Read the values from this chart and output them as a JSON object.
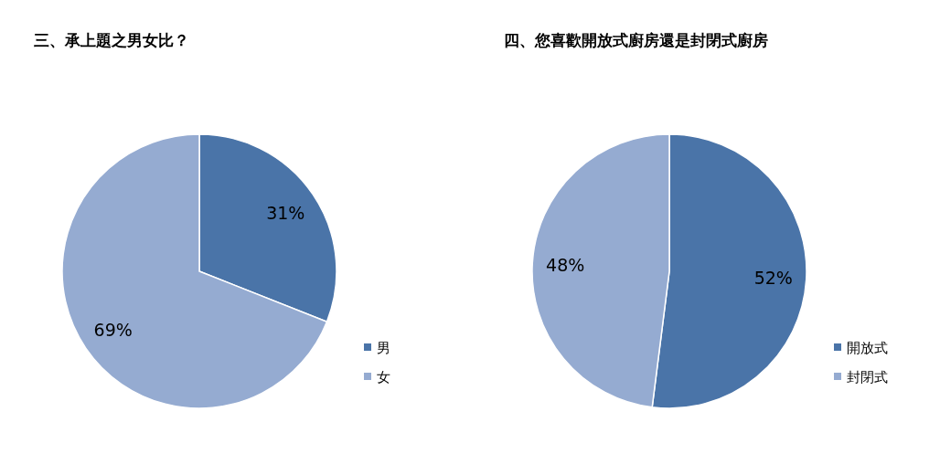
{
  "chart_data": [
    {
      "type": "pie",
      "title": "三、承上題之男女比？",
      "categories": [
        "男",
        "女"
      ],
      "values": [
        31,
        69
      ],
      "colors": [
        "#4a74a8",
        "#95abd1"
      ],
      "value_labels": [
        "31%",
        "69%"
      ],
      "legend": "right"
    },
    {
      "type": "pie",
      "title": "四、您喜歡開放式廚房還是封閉式廚房",
      "categories": [
        "開放式",
        "封閉式"
      ],
      "values": [
        52,
        48
      ],
      "colors": [
        "#4a74a8",
        "#95abd1"
      ],
      "value_labels": [
        "52%",
        "48%"
      ],
      "legend": "right"
    }
  ]
}
